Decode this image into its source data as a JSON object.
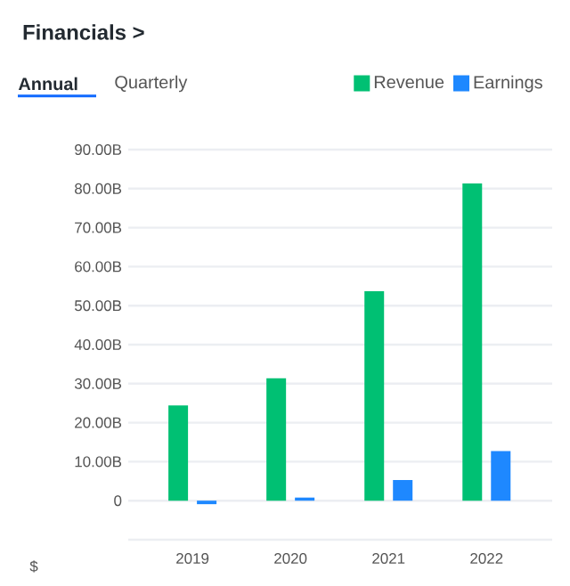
{
  "chart_data": {
    "type": "bar",
    "title": "Financials >",
    "annotations": [
      "Annual",
      "Quarterly",
      "$"
    ],
    "categories": [
      "2019",
      "2020",
      "2021",
      "2022"
    ],
    "series": [
      {
        "name": "Revenue",
        "color": "#00c073",
        "values": [
          24.4,
          31.4,
          53.7,
          81.3
        ]
      },
      {
        "name": "Earnings",
        "color": "#1e88ff",
        "values": [
          -0.9,
          0.8,
          5.3,
          12.7
        ]
      }
    ],
    "ylim": [
      -10,
      90
    ],
    "yticks": [
      {
        "value": -10,
        "label": null
      },
      0,
      {
        "value": 10,
        "label": "10.00B"
      },
      {
        "value": 20,
        "label": "20.00B"
      },
      {
        "value": 30,
        "label": "30.00B"
      },
      {
        "value": 40,
        "label": "40.00B"
      },
      {
        "value": 50,
        "label": "50.00B"
      },
      {
        "value": 60,
        "label": "60.00B"
      },
      {
        "value": 70,
        "label": "70.00B"
      },
      {
        "value": 80,
        "label": "80.00B"
      },
      {
        "value": 90,
        "label": "90.00B"
      }
    ],
    "grid": "y",
    "legend": "top right"
  }
}
